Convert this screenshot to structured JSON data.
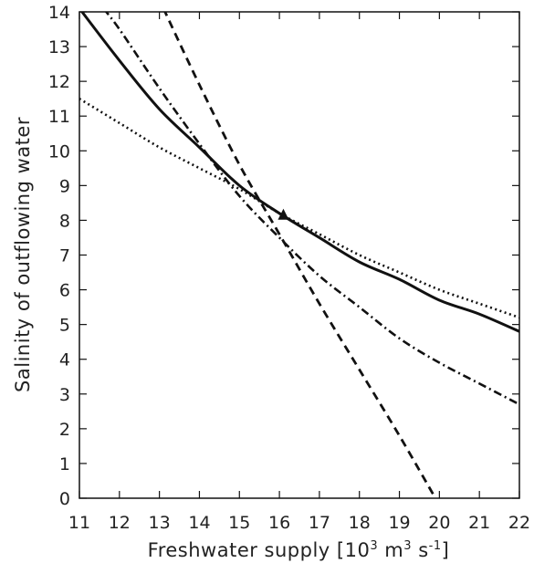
{
  "chart_data": {
    "type": "line",
    "title": "",
    "xlabel_parts": [
      "Freshwater supply [10",
      "3",
      " m",
      "3",
      " s",
      "-1",
      "]"
    ],
    "ylabel": "Salinity of outflowing water",
    "xlim": [
      11,
      22
    ],
    "ylim": [
      0,
      14
    ],
    "xticks": [
      "11",
      "12",
      "13",
      "14",
      "15",
      "16",
      "17",
      "18",
      "19",
      "20",
      "21",
      "22"
    ],
    "yticks": [
      "0",
      "1",
      "2",
      "3",
      "4",
      "5",
      "6",
      "7",
      "8",
      "9",
      "10",
      "11",
      "12",
      "13",
      "14"
    ],
    "grid": false,
    "legend": "none",
    "series": [
      {
        "style": "solid",
        "color": "#111111",
        "x": [
          11,
          12,
          13,
          14,
          15,
          16,
          17,
          18,
          19,
          20,
          21,
          22
        ],
        "y": [
          14.1,
          12.6,
          11.2,
          10.1,
          9.0,
          8.2,
          7.5,
          6.8,
          6.3,
          5.7,
          5.3,
          4.8
        ]
      },
      {
        "style": "dotted",
        "color": "#111111",
        "x": [
          11,
          12,
          13,
          14,
          15,
          16,
          17,
          18,
          19,
          20,
          21,
          22
        ],
        "y": [
          11.5,
          10.8,
          10.1,
          9.5,
          8.9,
          8.2,
          7.6,
          7.0,
          6.5,
          6.0,
          5.6,
          5.2
        ]
      },
      {
        "style": "dashdot",
        "color": "#111111",
        "x": [
          11.6,
          12,
          13,
          14,
          15,
          16,
          17,
          18,
          19,
          20,
          21,
          22
        ],
        "y": [
          14.1,
          13.5,
          11.8,
          10.2,
          8.7,
          7.5,
          6.4,
          5.5,
          4.6,
          3.9,
          3.3,
          2.7
        ]
      },
      {
        "style": "dashed",
        "color": "#111111",
        "x": [
          13.1,
          14,
          15,
          16,
          17,
          18,
          19,
          19.9
        ],
        "y": [
          14.1,
          11.9,
          9.6,
          7.6,
          5.6,
          3.7,
          1.8,
          0.0
        ]
      }
    ],
    "marker": {
      "shape": "triangle",
      "x": 16.1,
      "y": 8.15
    }
  }
}
